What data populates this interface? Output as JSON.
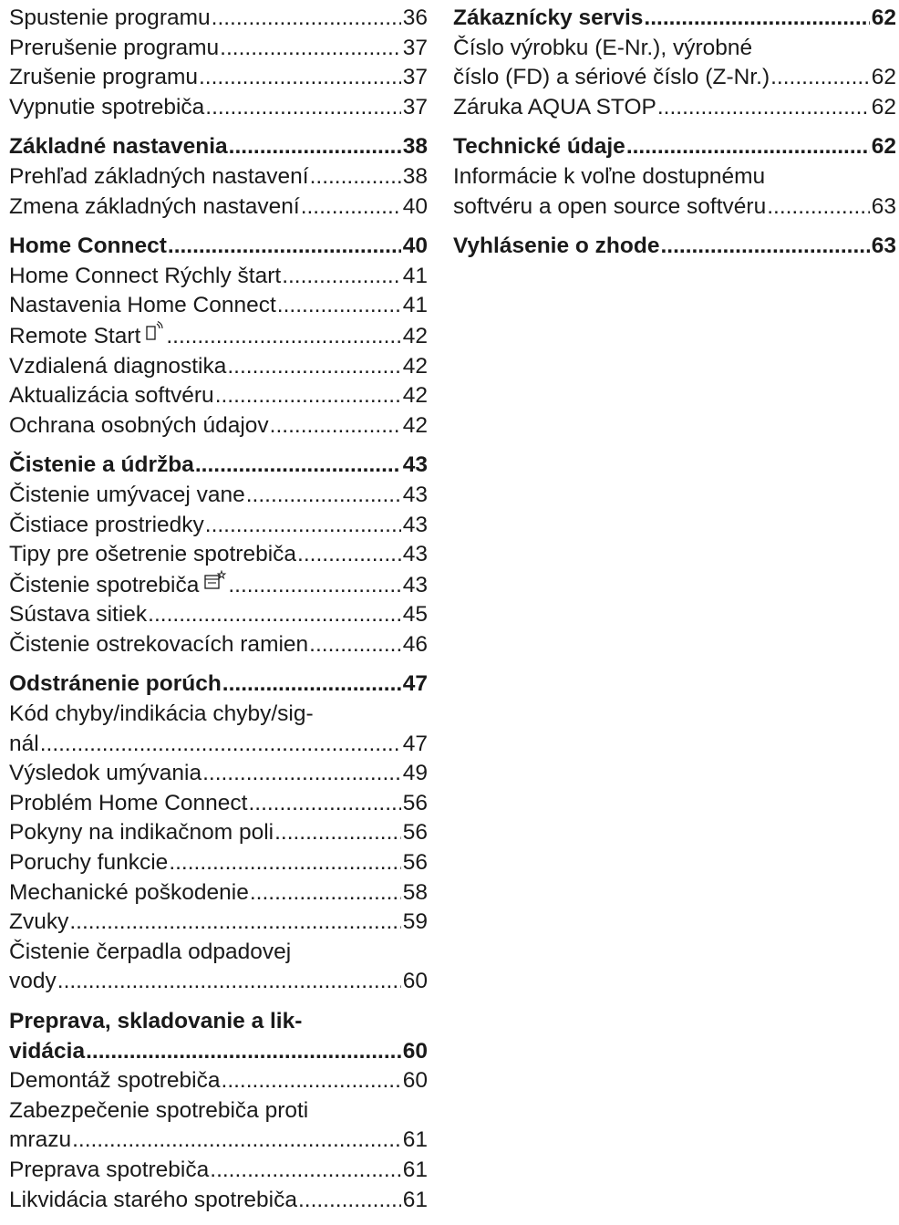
{
  "left": [
    {
      "entries": [
        {
          "title": "Spustenie programu",
          "page": "36"
        },
        {
          "title": "Prerušenie programu",
          "page": "37"
        },
        {
          "title": "Zrušenie programu",
          "page": "37"
        },
        {
          "title": "Vypnutie spotrebiča",
          "page": "37"
        }
      ]
    },
    {
      "entries": [
        {
          "title": "Základné nastavenia",
          "page": "38",
          "head": true
        },
        {
          "title": "Prehľad základných nastavení",
          "page": "38"
        },
        {
          "title": "Zmena základných nastavení",
          "page": "40"
        }
      ]
    },
    {
      "entries": [
        {
          "title": "Home Connect",
          "page": "40",
          "head": true
        },
        {
          "title": "Home Connect Rýchly štart",
          "page": "41"
        },
        {
          "title": "Nastavenia Home Connect",
          "page": "41"
        },
        {
          "title": "Remote Start",
          "page": "42",
          "icon": "remote-start-icon"
        },
        {
          "title": "Vzdialená diagnostika",
          "page": "42"
        },
        {
          "title": "Aktualizácia softvéru",
          "page": "42"
        },
        {
          "title": "Ochrana osobných údajov",
          "page": "42"
        }
      ]
    },
    {
      "entries": [
        {
          "title": "Čistenie a údržba",
          "page": "43",
          "head": true
        },
        {
          "title": "Čistenie umývacej vane",
          "page": "43"
        },
        {
          "title": "Čistiace prostriedky",
          "page": "43"
        },
        {
          "title": "Tipy pre ošetrenie spotrebiča",
          "page": "43"
        },
        {
          "title": "Čistenie spotrebiča",
          "page": "43",
          "icon": "machine-care-icon"
        },
        {
          "title": "Sústava sitiek",
          "page": "45"
        },
        {
          "title": "Čistenie ostrekovacích ramien",
          "page": "46"
        }
      ]
    },
    {
      "entries": [
        {
          "title": "Odstránenie porúch",
          "page": "47",
          "head": true
        },
        {
          "title": "nál",
          "pre": [
            "Kód chyby/indikácia chyby/sig-"
          ],
          "page": "47"
        },
        {
          "title": "Výsledok umývania",
          "page": "49"
        },
        {
          "title": "Problém Home Connect",
          "page": "56"
        },
        {
          "title": "Pokyny na indikačnom poli",
          "page": "56"
        },
        {
          "title": "Poruchy funkcie",
          "page": "56"
        },
        {
          "title": "Mechanické poškodenie",
          "page": "58"
        },
        {
          "title": "Zvuky",
          "page": "59"
        },
        {
          "title": "vody",
          "pre": [
            "Čistenie čerpadla odpadovej"
          ],
          "page": "60"
        }
      ]
    },
    {
      "entries": [
        {
          "title": "vidácia",
          "pre": [
            "Preprava, skladovanie a lik-"
          ],
          "page": "60",
          "head": true
        },
        {
          "title": "Demontáž spotrebiča",
          "page": "60"
        },
        {
          "title": "mrazu",
          "pre": [
            "Zabezpečenie spotrebiča proti"
          ],
          "page": "61"
        },
        {
          "title": "Preprava spotrebiča",
          "page": "61"
        },
        {
          "title": "Likvidácia starého spotrebiča",
          "page": "61"
        }
      ]
    }
  ],
  "right": [
    {
      "entries": [
        {
          "title": "Zákaznícky servis",
          "page": "62",
          "head": true
        },
        {
          "title": "číslo (FD) a sériové číslo (Z-Nr.)",
          "pre": [
            "Číslo výrobku (E-Nr.), výrobné"
          ],
          "page": "62"
        },
        {
          "title": "Záruka AQUA STOP",
          "page": "62"
        }
      ]
    },
    {
      "entries": [
        {
          "title": "Technické údaje",
          "page": "62",
          "head": true
        },
        {
          "title": "softvéru a open source softvéru",
          "pre": [
            "Informácie k voľne dostupnému"
          ],
          "page": "63"
        }
      ]
    },
    {
      "entries": [
        {
          "title": "Vyhlásenie o zhode",
          "page": "63",
          "head": true
        }
      ]
    }
  ]
}
